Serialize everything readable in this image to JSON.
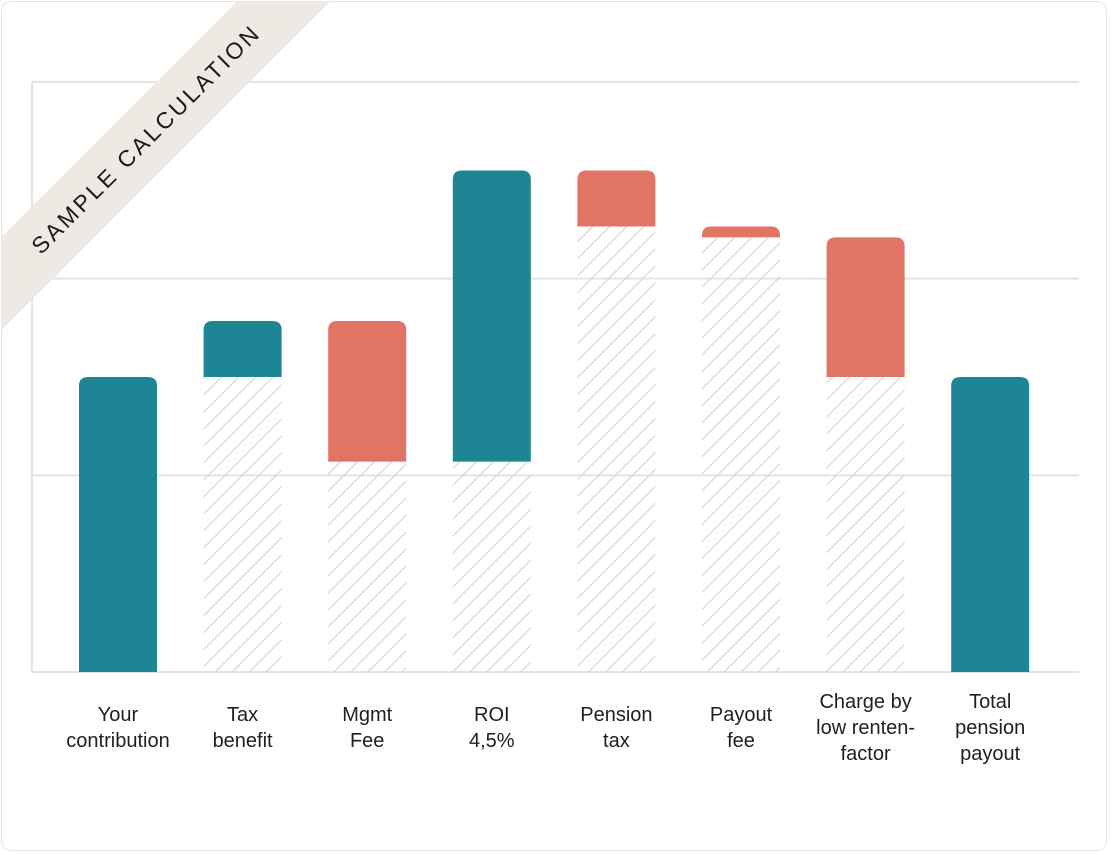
{
  "banner": {
    "label": "SAMPLE CALCULATION"
  },
  "colors": {
    "positive": "#1d8593",
    "negative": "#e27466",
    "hatch": "#cfcfcf",
    "grid": "#e4e4e4"
  },
  "chart_data": {
    "type": "bar",
    "subtype": "waterfall",
    "title": "",
    "xlabel": "",
    "ylabel": "",
    "ylim": [
      0,
      6
    ],
    "grid": true,
    "legend": "none",
    "categories": [
      [
        "Your",
        "contribution"
      ],
      [
        "Tax",
        "benefit"
      ],
      [
        "Mgmt",
        "Fee"
      ],
      [
        "ROI",
        "4,5%"
      ],
      [
        "Pension",
        "tax"
      ],
      [
        "Payout",
        "fee"
      ],
      [
        "Charge by",
        "low renten-",
        "factor"
      ],
      [
        "Total",
        "pension",
        "payout"
      ]
    ],
    "bars": [
      {
        "base": 0,
        "top": 3.0,
        "kind": "positive",
        "hatched_below": false
      },
      {
        "base": 3.0,
        "top": 3.57,
        "kind": "positive",
        "hatched_below": true
      },
      {
        "base": 2.14,
        "top": 3.57,
        "kind": "negative",
        "hatched_below": true
      },
      {
        "base": 2.14,
        "top": 5.1,
        "kind": "positive",
        "hatched_below": true
      },
      {
        "base": 4.53,
        "top": 5.1,
        "kind": "negative",
        "hatched_below": true
      },
      {
        "base": 4.42,
        "top": 4.53,
        "kind": "negative",
        "hatched_below": true
      },
      {
        "base": 3.0,
        "top": 4.42,
        "kind": "negative",
        "hatched_below": true
      },
      {
        "base": 0,
        "top": 3.0,
        "kind": "positive",
        "hatched_below": false
      }
    ]
  }
}
